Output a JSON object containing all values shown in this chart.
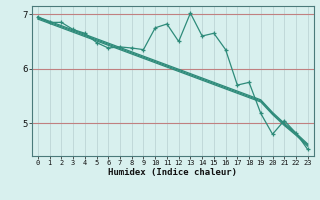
{
  "xlabel": "Humidex (Indice chaleur)",
  "x": [
    0,
    1,
    2,
    3,
    4,
    5,
    6,
    7,
    8,
    9,
    10,
    11,
    12,
    13,
    14,
    15,
    16,
    17,
    18,
    19,
    20,
    21,
    22,
    23
  ],
  "line_jagged": [
    6.95,
    6.85,
    6.85,
    6.72,
    6.65,
    6.48,
    6.38,
    6.4,
    6.38,
    6.35,
    6.75,
    6.82,
    6.5,
    7.02,
    6.6,
    6.65,
    6.35,
    5.7,
    5.75,
    5.18,
    4.8,
    5.05,
    4.82,
    4.52
  ],
  "line_smooth1": [
    6.95,
    6.87,
    6.79,
    6.71,
    6.63,
    6.55,
    6.47,
    6.39,
    6.31,
    6.23,
    6.15,
    6.07,
    5.99,
    5.91,
    5.83,
    5.75,
    5.67,
    5.59,
    5.51,
    5.43,
    5.2,
    5.0,
    4.82,
    4.62
  ],
  "line_smooth2": [
    6.93,
    6.85,
    6.77,
    6.69,
    6.61,
    6.53,
    6.45,
    6.37,
    6.29,
    6.21,
    6.13,
    6.05,
    5.97,
    5.89,
    5.81,
    5.73,
    5.65,
    5.57,
    5.49,
    5.41,
    5.18,
    4.98,
    4.8,
    4.6
  ],
  "line_smooth3": [
    6.91,
    6.83,
    6.75,
    6.67,
    6.59,
    6.51,
    6.43,
    6.35,
    6.27,
    6.19,
    6.11,
    6.03,
    5.95,
    5.87,
    5.79,
    5.71,
    5.63,
    5.55,
    5.47,
    5.39,
    5.16,
    4.96,
    4.78,
    4.58
  ],
  "line_color": "#2e8b7a",
  "bg_color": "#d8f0ee",
  "grid_color_h": "#c08080",
  "grid_color_v": "#b8d0d0",
  "xlim": [
    -0.5,
    23.5
  ],
  "ylim": [
    4.4,
    7.15
  ],
  "yticks": [
    5,
    6,
    7
  ],
  "xticks": [
    0,
    1,
    2,
    3,
    4,
    5,
    6,
    7,
    8,
    9,
    10,
    11,
    12,
    13,
    14,
    15,
    16,
    17,
    18,
    19,
    20,
    21,
    22,
    23
  ]
}
